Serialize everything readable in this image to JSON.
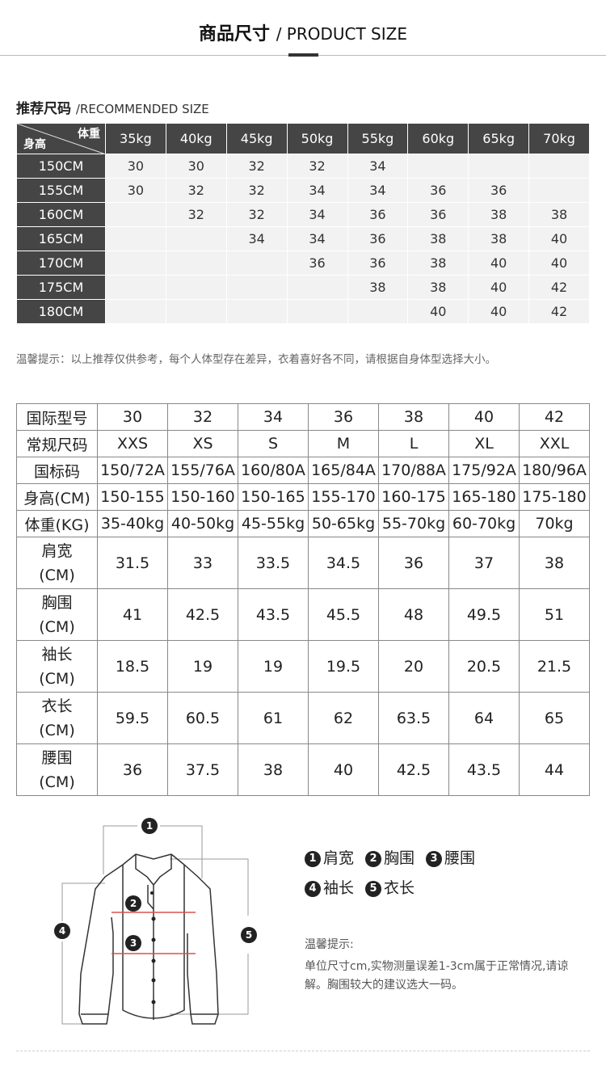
{
  "header": {
    "title_cn": "商品尺寸",
    "title_en": "/ PRODUCT SIZE"
  },
  "recommended": {
    "title_cn": "推荐尺码",
    "title_en": "/RECOMMENDED SIZE",
    "corner_weight": "体重",
    "corner_height": "身高",
    "weights": [
      "35kg",
      "40kg",
      "45kg",
      "50kg",
      "55kg",
      "60kg",
      "65kg",
      "70kg"
    ],
    "rows": [
      {
        "height": "150CM",
        "sizes": [
          "30",
          "30",
          "32",
          "32",
          "34",
          "",
          "",
          ""
        ]
      },
      {
        "height": "155CM",
        "sizes": [
          "30",
          "32",
          "32",
          "34",
          "34",
          "36",
          "36",
          ""
        ]
      },
      {
        "height": "160CM",
        "sizes": [
          "",
          "32",
          "32",
          "34",
          "36",
          "36",
          "38",
          "38"
        ]
      },
      {
        "height": "165CM",
        "sizes": [
          "",
          "",
          "34",
          "34",
          "36",
          "38",
          "38",
          "40"
        ]
      },
      {
        "height": "170CM",
        "sizes": [
          "",
          "",
          "",
          "36",
          "36",
          "38",
          "40",
          "40"
        ]
      },
      {
        "height": "175CM",
        "sizes": [
          "",
          "",
          "",
          "",
          "38",
          "38",
          "40",
          "42"
        ]
      },
      {
        "height": "180CM",
        "sizes": [
          "",
          "",
          "",
          "",
          "",
          "40",
          "40",
          "42"
        ]
      }
    ]
  },
  "tip": "温馨提示：以上推荐仅供参考，每个人体型存在差异，衣着喜好各不同，请根据自身体型选择大小。",
  "size_table": [
    {
      "label": "国际型号",
      "values": [
        "30",
        "32",
        "34",
        "36",
        "38",
        "40",
        "42"
      ]
    },
    {
      "label": "常规尺码",
      "values": [
        "XXS",
        "XS",
        "S",
        "M",
        "L",
        "XL",
        "XXL"
      ]
    },
    {
      "label": "国标码",
      "values": [
        "150/72A",
        "155/76A",
        "160/80A",
        "165/84A",
        "170/88A",
        "175/92A",
        "180/96A"
      ]
    },
    {
      "label": "身高(CM)",
      "values": [
        "150-155",
        "150-160",
        "150-165",
        "155-170",
        "160-175",
        "165-180",
        "175-180"
      ]
    },
    {
      "label": "体重(KG)",
      "values": [
        "35-40kg",
        "40-50kg",
        "45-55kg",
        "50-65kg",
        "55-70kg",
        "60-70kg",
        "70kg"
      ]
    },
    {
      "label": "肩宽",
      "unit": "(CM)",
      "values": [
        "31.5",
        "33",
        "33.5",
        "34.5",
        "36",
        "37",
        "38"
      ]
    },
    {
      "label": "胸围",
      "unit": "(CM)",
      "values": [
        "41",
        "42.5",
        "43.5",
        "45.5",
        "48",
        "49.5",
        "51"
      ]
    },
    {
      "label": "袖长",
      "unit": "(CM)",
      "values": [
        "18.5",
        "19",
        "19",
        "19.5",
        "20",
        "20.5",
        "21.5"
      ]
    },
    {
      "label": "衣长",
      "unit": "(CM)",
      "values": [
        "59.5",
        "60.5",
        "61",
        "62",
        "63.5",
        "64",
        "65"
      ]
    },
    {
      "label": "腰围",
      "unit": "(CM)",
      "values": [
        "36",
        "37.5",
        "38",
        "40",
        "42.5",
        "43.5",
        "44"
      ]
    }
  ],
  "legend": [
    {
      "n": "1",
      "label": "肩宽"
    },
    {
      "n": "2",
      "label": "胸围"
    },
    {
      "n": "3",
      "label": "腰围"
    },
    {
      "n": "4",
      "label": "袖长"
    },
    {
      "n": "5",
      "label": "衣长"
    }
  ],
  "warm": {
    "title": "温馨提示:",
    "text": "单位尺寸cm,实物测量误差1-3cm属于正常情况,请谅解。胸围较大的建议选大一码。"
  },
  "colors": {
    "header_bg": "#454545",
    "cell_bg": "#f2f2f2",
    "measure_line": "#d9534f"
  }
}
